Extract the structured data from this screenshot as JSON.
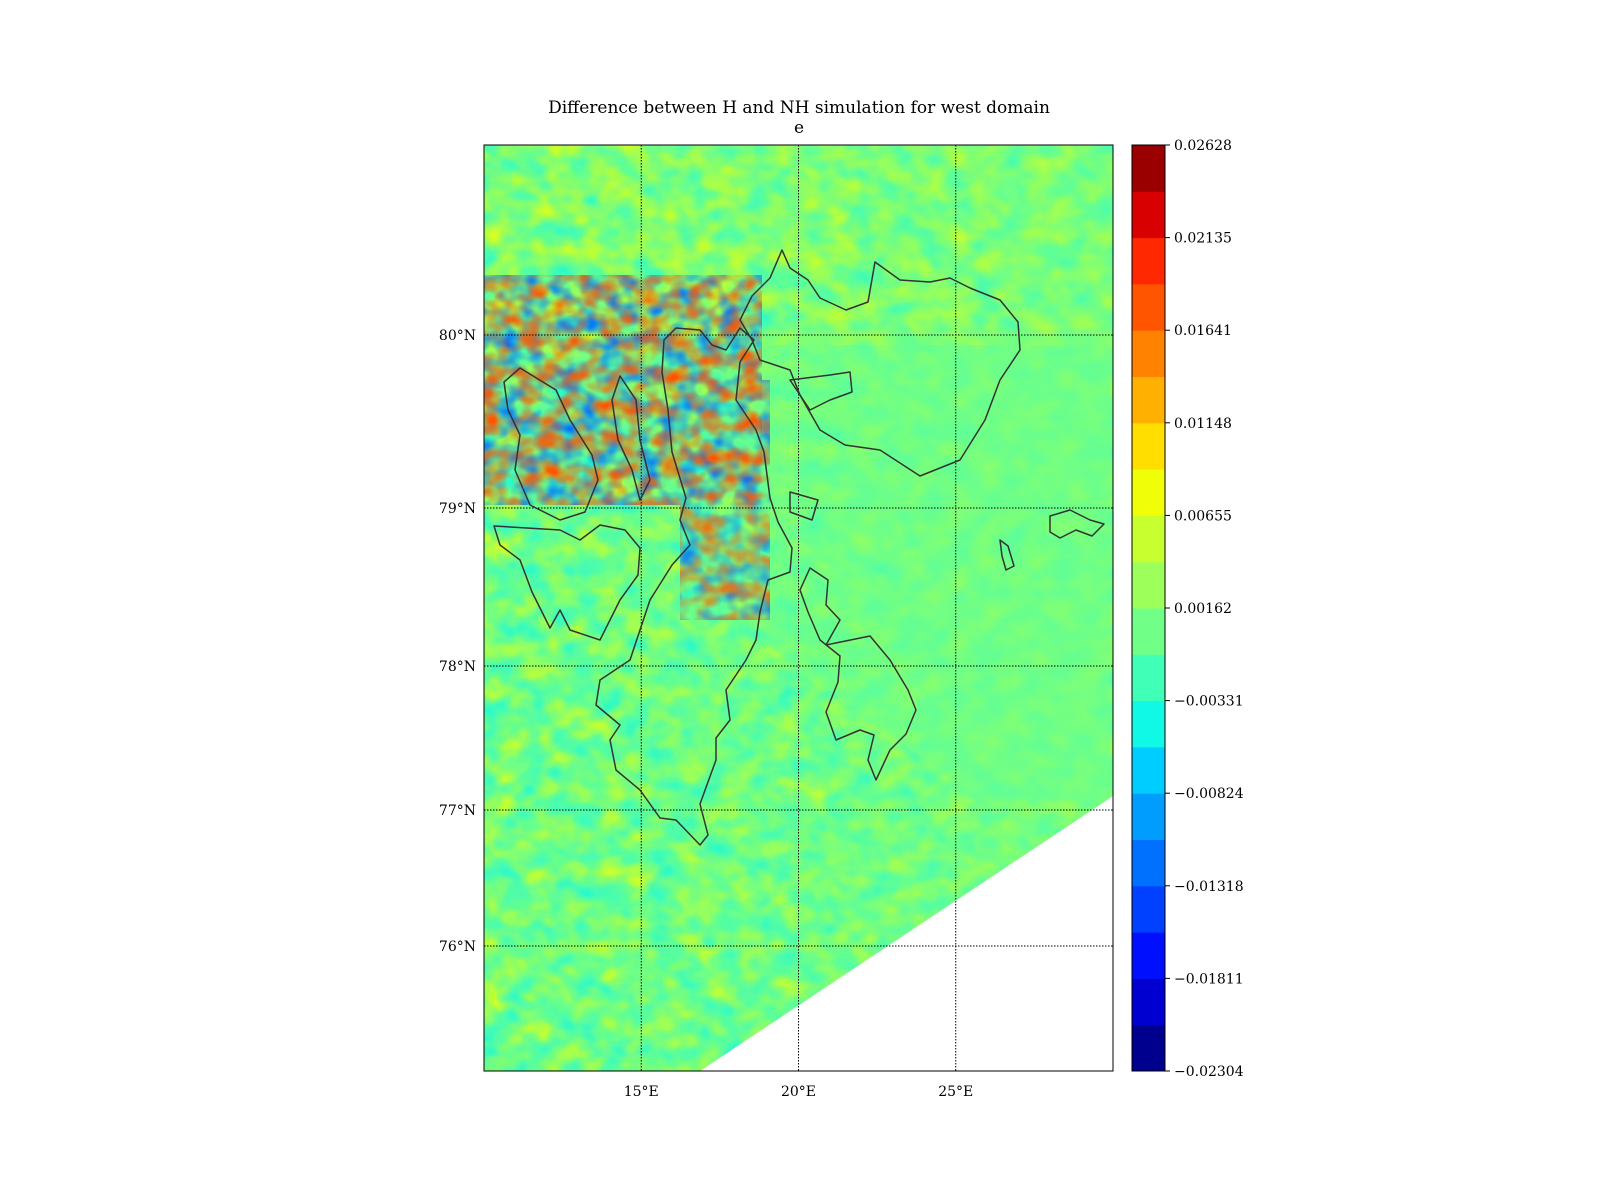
{
  "title": "Difference between H and NH simulation for west domain",
  "subtitle": "e",
  "chart_data": {
    "type": "heatmap",
    "title": "Difference between H and NH simulation for west domain",
    "subtitle": "e",
    "lon_range": [
      10,
      30
    ],
    "lat_range": [
      75.15,
      81.2
    ],
    "lon_ticks": [
      {
        "value": 15,
        "label": "15°E"
      },
      {
        "value": 20,
        "label": "20°E"
      },
      {
        "value": 25,
        "label": "25°E"
      }
    ],
    "lat_ticks": [
      {
        "value": 76,
        "label": "76°N"
      },
      {
        "value": 77,
        "label": "77°N"
      },
      {
        "value": 78,
        "label": "78°N"
      },
      {
        "value": 79,
        "label": "79°N"
      },
      {
        "value": 80,
        "label": "80°N"
      }
    ],
    "grid": true,
    "colormap": "jet",
    "colorbar": {
      "min": -0.02304,
      "max": 0.02628,
      "tick_labels": [
        "0.02628",
        "0.02135",
        "0.01641",
        "0.01148",
        "0.00655",
        "0.00162",
        "−0.00331",
        "−0.00824",
        "−0.01318",
        "−0.01811",
        "−0.02304"
      ],
      "levels": 20,
      "colors": [
        "#00008f",
        "#0000d0",
        "#0010ff",
        "#0040ff",
        "#0070ff",
        "#009dff",
        "#00cdff",
        "#10f8e6",
        "#40ffb6",
        "#70ff87",
        "#9cff5a",
        "#c8ff2e",
        "#f0ff08",
        "#ffde00",
        "#ffb000",
        "#ff8200",
        "#ff5500",
        "#ff2800",
        "#d80000",
        "#9a0000"
      ]
    },
    "background_value_color": "#70ff87",
    "no_data_region": "lower-right triangle (south-east)"
  }
}
